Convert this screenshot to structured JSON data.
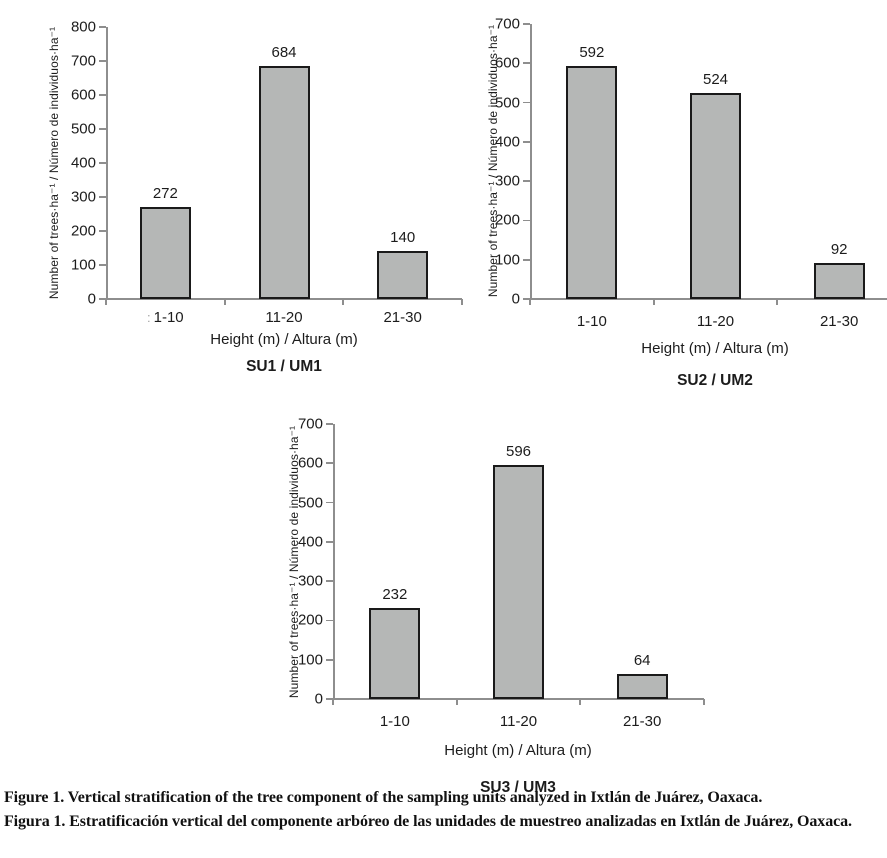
{
  "colors": {
    "bar_fill": "#b5b7b6",
    "bar_border": "#1a1a1a",
    "axis": "#8e8e8e",
    "text": "#1c1c1c"
  },
  "chart_data": [
    {
      "type": "bar",
      "title": "SU1 / UM1",
      "categories": [
        "1-10",
        "11-20",
        "21-30"
      ],
      "values": [
        272,
        684,
        140
      ],
      "value_labels": [
        "272",
        "684",
        "140"
      ],
      "xlabel": "Height (m) / Altura (m)",
      "ylabel": "Number of trees·ha⁻¹ / Número de individuos·ha⁻¹",
      "ylim": [
        0,
        800
      ],
      "ytick_step": 100,
      "ytick_labels": [
        "0",
        "100",
        "200",
        "300",
        "400",
        "500",
        "600",
        "700",
        "800"
      ],
      "grid": false,
      "legend": false,
      "category0_artifact": ":"
    },
    {
      "type": "bar",
      "title": "SU2 / UM2",
      "categories": [
        "1-10",
        "11-20",
        "21-30"
      ],
      "values": [
        592,
        524,
        92
      ],
      "value_labels": [
        "592",
        "524",
        "92"
      ],
      "xlabel": "Height (m) / Altura (m)",
      "ylabel": "Number of trees·ha⁻¹ / Número de individuos·ha⁻¹",
      "ylim": [
        0,
        700
      ],
      "ytick_step": 100,
      "ytick_labels": [
        "0",
        "100",
        "200",
        "300",
        "400",
        "500",
        "600",
        "700"
      ],
      "grid": false,
      "legend": false
    },
    {
      "type": "bar",
      "title": "SU3 / UM3",
      "categories": [
        "1-10",
        "11-20",
        "21-30"
      ],
      "values": [
        232,
        596,
        64
      ],
      "value_labels": [
        "232",
        "596",
        "64"
      ],
      "xlabel": "Height (m) / Altura (m)",
      "ylabel": "Number of trees·ha⁻¹ / Número de individuos·ha⁻¹",
      "ylim": [
        0,
        700
      ],
      "ytick_step": 100,
      "ytick_labels": [
        "0",
        "100",
        "200",
        "300",
        "400",
        "500",
        "600",
        "700"
      ],
      "grid": false,
      "legend": false
    }
  ],
  "caption": {
    "english": "Figure 1. Vertical stratification of the tree component of the sampling units analyzed in Ixtlán de Juárez, Oaxaca.",
    "spanish": "Figura 1. Estratificación vertical del componente arbóreo de las unidades de muestreo analizadas en Ixtlán de Juárez, Oaxaca."
  }
}
